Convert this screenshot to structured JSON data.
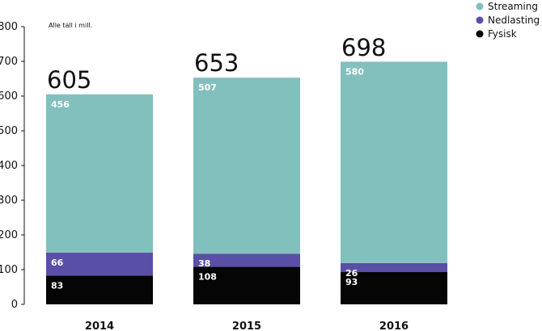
{
  "chart_data": {
    "type": "bar",
    "stacked": true,
    "note": "Alle tall i mill.",
    "categories": [
      "2014",
      "2015",
      "2016"
    ],
    "series": [
      {
        "name": "Fysisk",
        "values": [
          83,
          108,
          93
        ],
        "color": "#050505"
      },
      {
        "name": "Nedlasting",
        "values": [
          66,
          38,
          26
        ],
        "color": "#5a4fa6"
      },
      {
        "name": "Streaming",
        "values": [
          456,
          507,
          580
        ],
        "color": "#82c0bd"
      }
    ],
    "totals": [
      605,
      653,
      698
    ],
    "legend_order": [
      "Streaming",
      "Nedlasting",
      "Fysisk"
    ],
    "ylim": [
      0,
      800
    ],
    "yticks": [
      0,
      100,
      200,
      300,
      400,
      500,
      600,
      700,
      800
    ],
    "legend_position": "top-right",
    "grid": false
  }
}
